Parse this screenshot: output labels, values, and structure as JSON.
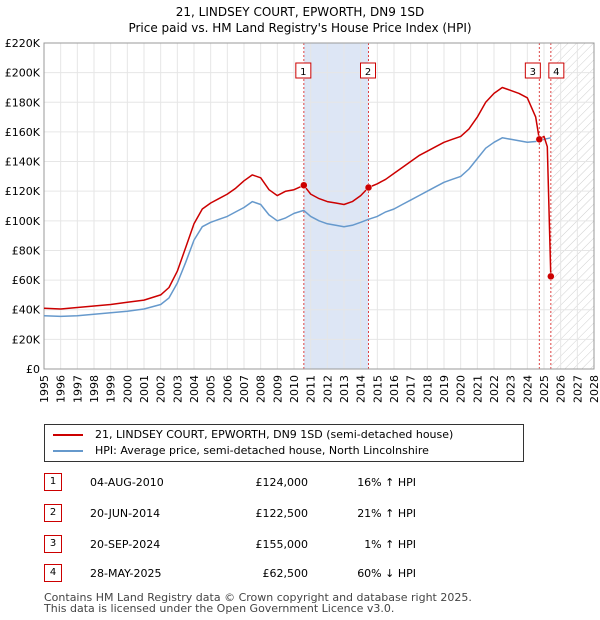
{
  "header": {
    "title": "21, LINDSEY COURT, EPWORTH, DN9 1SD",
    "subtitle": "Price paid vs. HM Land Registry's House Price Index (HPI)"
  },
  "colors": {
    "property": "#cc0000",
    "hpi": "#6699cc",
    "marker_line": "#dd4444",
    "highlight": "#dde6f5"
  },
  "chart_data": {
    "type": "line",
    "xlim": [
      1995,
      2028
    ],
    "ylim": [
      0,
      220000
    ],
    "x_ticks": [
      "1995",
      "1996",
      "1997",
      "1998",
      "1999",
      "2000",
      "2001",
      "2002",
      "2003",
      "2004",
      "2005",
      "2006",
      "2007",
      "2008",
      "2009",
      "2010",
      "2011",
      "2012",
      "2013",
      "2014",
      "2015",
      "2016",
      "2017",
      "2018",
      "2019",
      "2020",
      "2021",
      "2022",
      "2023",
      "2024",
      "2025",
      "2026",
      "2027",
      "2028"
    ],
    "y_ticks": [
      {
        "value": 0,
        "label": "£0"
      },
      {
        "value": 20000,
        "label": "£20K"
      },
      {
        "value": 40000,
        "label": "£40K"
      },
      {
        "value": 60000,
        "label": "£60K"
      },
      {
        "value": 80000,
        "label": "£80K"
      },
      {
        "value": 100000,
        "label": "£100K"
      },
      {
        "value": 120000,
        "label": "£120K"
      },
      {
        "value": 140000,
        "label": "£140K"
      },
      {
        "value": 160000,
        "label": "£160K"
      },
      {
        "value": 180000,
        "label": "£180K"
      },
      {
        "value": 200000,
        "label": "£200K"
      },
      {
        "value": 220000,
        "label": "£220K"
      }
    ],
    "highlight_range": [
      2010.59,
      2014.47
    ],
    "future_start": 2025.41,
    "series": [
      {
        "name": "21, LINDSEY COURT, EPWORTH, DN9 1SD (semi-detached house)",
        "color": "#cc0000",
        "points": [
          [
            1995.0,
            41000
          ],
          [
            1996.0,
            40500
          ],
          [
            1997.0,
            41500
          ],
          [
            1998.0,
            42500
          ],
          [
            1999.0,
            43500
          ],
          [
            2000.0,
            45000
          ],
          [
            2001.0,
            46500
          ],
          [
            2002.0,
            50000
          ],
          [
            2002.5,
            55000
          ],
          [
            2003.0,
            66000
          ],
          [
            2003.5,
            82000
          ],
          [
            2004.0,
            98000
          ],
          [
            2004.5,
            108000
          ],
          [
            2005.0,
            112000
          ],
          [
            2005.5,
            115000
          ],
          [
            2006.0,
            118000
          ],
          [
            2006.5,
            122000
          ],
          [
            2007.0,
            127000
          ],
          [
            2007.5,
            131000
          ],
          [
            2008.0,
            129000
          ],
          [
            2008.5,
            121000
          ],
          [
            2009.0,
            117000
          ],
          [
            2009.5,
            120000
          ],
          [
            2010.0,
            121000
          ],
          [
            2010.59,
            124000
          ],
          [
            2011.0,
            118000
          ],
          [
            2011.5,
            115000
          ],
          [
            2012.0,
            113000
          ],
          [
            2012.5,
            112000
          ],
          [
            2013.0,
            111000
          ],
          [
            2013.5,
            113000
          ],
          [
            2014.0,
            117000
          ],
          [
            2014.47,
            122500
          ],
          [
            2015.0,
            125000
          ],
          [
            2015.5,
            128000
          ],
          [
            2016.0,
            132000
          ],
          [
            2016.5,
            136000
          ],
          [
            2017.0,
            140000
          ],
          [
            2017.5,
            144000
          ],
          [
            2018.0,
            147000
          ],
          [
            2018.5,
            150000
          ],
          [
            2019.0,
            153000
          ],
          [
            2019.5,
            155000
          ],
          [
            2020.0,
            157000
          ],
          [
            2020.5,
            162000
          ],
          [
            2021.0,
            170000
          ],
          [
            2021.5,
            180000
          ],
          [
            2022.0,
            186000
          ],
          [
            2022.5,
            190000
          ],
          [
            2023.0,
            188000
          ],
          [
            2023.5,
            186000
          ],
          [
            2024.0,
            183000
          ],
          [
            2024.5,
            170000
          ],
          [
            2024.72,
            155000
          ],
          [
            2025.0,
            157000
          ],
          [
            2025.2,
            150000
          ],
          [
            2025.41,
            62500
          ]
        ]
      },
      {
        "name": "HPI: Average price, semi-detached house, North Lincolnshire",
        "color": "#6699cc",
        "points": [
          [
            1995.0,
            36000
          ],
          [
            1996.0,
            35500
          ],
          [
            1997.0,
            36000
          ],
          [
            1998.0,
            37000
          ],
          [
            1999.0,
            38000
          ],
          [
            2000.0,
            39000
          ],
          [
            2001.0,
            40500
          ],
          [
            2002.0,
            43500
          ],
          [
            2002.5,
            48000
          ],
          [
            2003.0,
            58000
          ],
          [
            2003.5,
            72000
          ],
          [
            2004.0,
            87000
          ],
          [
            2004.5,
            96000
          ],
          [
            2005.0,
            99000
          ],
          [
            2005.5,
            101000
          ],
          [
            2006.0,
            103000
          ],
          [
            2006.5,
            106000
          ],
          [
            2007.0,
            109000
          ],
          [
            2007.5,
            113000
          ],
          [
            2008.0,
            111000
          ],
          [
            2008.5,
            104000
          ],
          [
            2009.0,
            100000
          ],
          [
            2009.5,
            102000
          ],
          [
            2010.0,
            105000
          ],
          [
            2010.59,
            107000
          ],
          [
            2011.0,
            103000
          ],
          [
            2011.5,
            100000
          ],
          [
            2012.0,
            98000
          ],
          [
            2012.5,
            97000
          ],
          [
            2013.0,
            96000
          ],
          [
            2013.5,
            97000
          ],
          [
            2014.0,
            99000
          ],
          [
            2014.47,
            101000
          ],
          [
            2015.0,
            103000
          ],
          [
            2015.5,
            106000
          ],
          [
            2016.0,
            108000
          ],
          [
            2016.5,
            111000
          ],
          [
            2017.0,
            114000
          ],
          [
            2017.5,
            117000
          ],
          [
            2018.0,
            120000
          ],
          [
            2018.5,
            123000
          ],
          [
            2019.0,
            126000
          ],
          [
            2019.5,
            128000
          ],
          [
            2020.0,
            130000
          ],
          [
            2020.5,
            135000
          ],
          [
            2021.0,
            142000
          ],
          [
            2021.5,
            149000
          ],
          [
            2022.0,
            153000
          ],
          [
            2022.5,
            156000
          ],
          [
            2023.0,
            155000
          ],
          [
            2023.5,
            154000
          ],
          [
            2024.0,
            153000
          ],
          [
            2024.5,
            153500
          ],
          [
            2025.0,
            155000
          ],
          [
            2025.41,
            156000
          ]
        ]
      }
    ],
    "sales": [
      {
        "id": "1",
        "x": 2010.59,
        "y": 124000
      },
      {
        "id": "2",
        "x": 2014.47,
        "y": 122500
      },
      {
        "id": "3",
        "x": 2024.72,
        "y": 155000
      },
      {
        "id": "4",
        "x": 2025.41,
        "y": 62500
      }
    ]
  },
  "legend": {
    "property_label": "21, LINDSEY COURT, EPWORTH, DN9 1SD (semi-detached house)",
    "hpi_label": "HPI: Average price, semi-detached house, North Lincolnshire"
  },
  "transactions": [
    {
      "id": "1",
      "date": "04-AUG-2010",
      "price": "£124,000",
      "hpi": "16% ↑ HPI"
    },
    {
      "id": "2",
      "date": "20-JUN-2014",
      "price": "£122,500",
      "hpi": "21% ↑ HPI"
    },
    {
      "id": "3",
      "date": "20-SEP-2024",
      "price": "£155,000",
      "hpi": "1% ↑ HPI"
    },
    {
      "id": "4",
      "date": "28-MAY-2025",
      "price": "£62,500",
      "hpi": "60% ↓ HPI"
    }
  ],
  "footer": {
    "line1": "Contains HM Land Registry data © Crown copyright and database right 2025.",
    "line2": "This data is licensed under the Open Government Licence v3.0."
  }
}
